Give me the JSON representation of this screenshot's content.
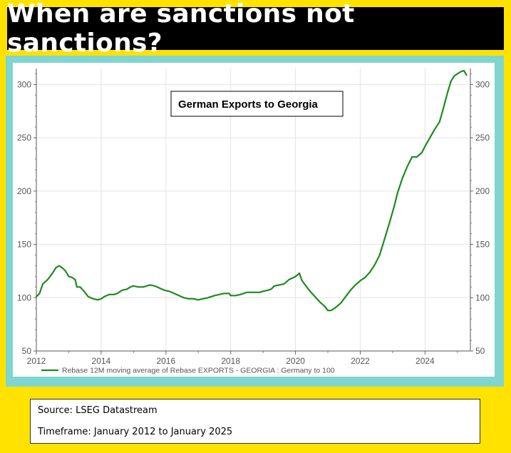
{
  "header": {
    "title": "When are sanctions not sanctions?"
  },
  "footer": {
    "source": "Source: LSEG Datastream",
    "timeframe": "Timeframe: January 2012 to January 2025"
  },
  "colors": {
    "background": "#FFE200",
    "frame": "#7FD5CF",
    "series": "#1E8B1E",
    "title_bg": "#000000"
  },
  "chart_data": {
    "type": "line",
    "title": "German Exports to Georgia",
    "xlabel": "",
    "ylabel": "",
    "xlim": [
      2012,
      2025.4
    ],
    "ylim": [
      50,
      315
    ],
    "x_ticks": [
      2012,
      2014,
      2016,
      2018,
      2020,
      2022,
      2024
    ],
    "y_ticks": [
      50,
      100,
      150,
      200,
      250,
      300
    ],
    "grid": true,
    "legend": "bottom-left",
    "series": [
      {
        "name": "Rebase 12M moving average of Rebase EXPORTS - GEORGIA : Germany to 100",
        "color": "#1E8B1E",
        "points": [
          [
            2012.0,
            101
          ],
          [
            2012.1,
            104
          ],
          [
            2012.2,
            113
          ],
          [
            2012.35,
            117
          ],
          [
            2012.5,
            123
          ],
          [
            2012.6,
            128
          ],
          [
            2012.7,
            130
          ],
          [
            2012.8,
            128
          ],
          [
            2012.9,
            125
          ],
          [
            2013.0,
            120
          ],
          [
            2013.1,
            119
          ],
          [
            2013.2,
            117
          ],
          [
            2013.25,
            110
          ],
          [
            2013.35,
            110
          ],
          [
            2013.5,
            105
          ],
          [
            2013.6,
            101
          ],
          [
            2013.75,
            99
          ],
          [
            2013.9,
            98
          ],
          [
            2014.0,
            99
          ],
          [
            2014.1,
            101
          ],
          [
            2014.25,
            103
          ],
          [
            2014.4,
            103
          ],
          [
            2014.5,
            104
          ],
          [
            2014.65,
            107
          ],
          [
            2014.8,
            108
          ],
          [
            2014.9,
            110
          ],
          [
            2015.0,
            111
          ],
          [
            2015.15,
            110
          ],
          [
            2015.3,
            110
          ],
          [
            2015.5,
            112
          ],
          [
            2015.65,
            111
          ],
          [
            2015.8,
            109
          ],
          [
            2015.95,
            107
          ],
          [
            2016.1,
            106
          ],
          [
            2016.25,
            104
          ],
          [
            2016.4,
            102
          ],
          [
            2016.55,
            100
          ],
          [
            2016.7,
            99
          ],
          [
            2016.85,
            99
          ],
          [
            2017.0,
            98
          ],
          [
            2017.15,
            99
          ],
          [
            2017.3,
            100
          ],
          [
            2017.5,
            102
          ],
          [
            2017.65,
            103
          ],
          [
            2017.8,
            104
          ],
          [
            2017.95,
            104
          ],
          [
            2018.0,
            102
          ],
          [
            2018.15,
            102
          ],
          [
            2018.3,
            103
          ],
          [
            2018.5,
            105
          ],
          [
            2018.7,
            105
          ],
          [
            2018.9,
            105
          ],
          [
            2019.0,
            106
          ],
          [
            2019.15,
            107
          ],
          [
            2019.25,
            108
          ],
          [
            2019.35,
            111
          ],
          [
            2019.5,
            112
          ],
          [
            2019.65,
            113
          ],
          [
            2019.8,
            117
          ],
          [
            2019.95,
            119
          ],
          [
            2020.05,
            121
          ],
          [
            2020.12,
            123
          ],
          [
            2020.2,
            116
          ],
          [
            2020.3,
            112
          ],
          [
            2020.45,
            106
          ],
          [
            2020.6,
            101
          ],
          [
            2020.75,
            96
          ],
          [
            2020.9,
            92
          ],
          [
            2021.0,
            88
          ],
          [
            2021.1,
            88
          ],
          [
            2021.25,
            91
          ],
          [
            2021.4,
            95
          ],
          [
            2021.55,
            101
          ],
          [
            2021.7,
            107
          ],
          [
            2021.85,
            112
          ],
          [
            2022.0,
            116
          ],
          [
            2022.15,
            119
          ],
          [
            2022.3,
            124
          ],
          [
            2022.45,
            131
          ],
          [
            2022.6,
            140
          ],
          [
            2022.75,
            155
          ],
          [
            2022.9,
            170
          ],
          [
            2023.05,
            186
          ],
          [
            2023.15,
            198
          ],
          [
            2023.3,
            212
          ],
          [
            2023.45,
            223
          ],
          [
            2023.6,
            232
          ],
          [
            2023.75,
            232
          ],
          [
            2023.9,
            236
          ],
          [
            2024.0,
            242
          ],
          [
            2024.15,
            250
          ],
          [
            2024.3,
            258
          ],
          [
            2024.45,
            265
          ],
          [
            2024.55,
            276
          ],
          [
            2024.7,
            293
          ],
          [
            2024.8,
            303
          ],
          [
            2024.9,
            308
          ],
          [
            2025.0,
            310
          ],
          [
            2025.1,
            312
          ],
          [
            2025.2,
            313
          ],
          [
            2025.28,
            309
          ]
        ]
      }
    ]
  }
}
